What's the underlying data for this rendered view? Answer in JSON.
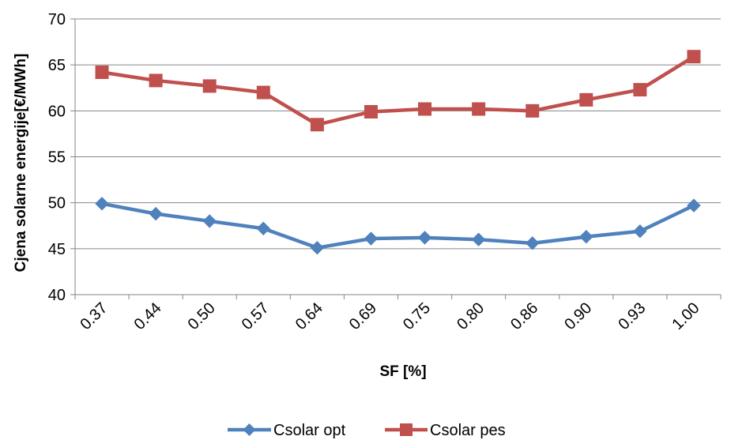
{
  "chart_data": {
    "type": "line",
    "title": "",
    "xlabel": "SF [%]",
    "ylabel": "Cjena solarne energije[€/MWh]",
    "categories": [
      "0.37",
      "0.44",
      "0.50",
      "0.57",
      "0.64",
      "0.69",
      "0.75",
      "0.80",
      "0.86",
      "0.90",
      "0.93",
      "1.00"
    ],
    "ylim": [
      40,
      70
    ],
    "yticks": [
      "40",
      "45",
      "50",
      "55",
      "60",
      "65",
      "70"
    ],
    "grid": "horizontal",
    "legend": "bottom",
    "series": [
      {
        "name": "Csolar opt",
        "color": "#4f81bd",
        "marker": "diamond",
        "values": [
          49.9,
          48.8,
          48.0,
          47.2,
          45.1,
          46.1,
          46.2,
          46.0,
          45.6,
          46.3,
          46.9,
          49.7
        ]
      },
      {
        "name": "Csolar pes",
        "color": "#c0504d",
        "marker": "square",
        "values": [
          64.2,
          63.3,
          62.7,
          62.0,
          58.5,
          59.9,
          60.2,
          60.2,
          60.0,
          61.2,
          62.3,
          65.9
        ]
      }
    ]
  }
}
